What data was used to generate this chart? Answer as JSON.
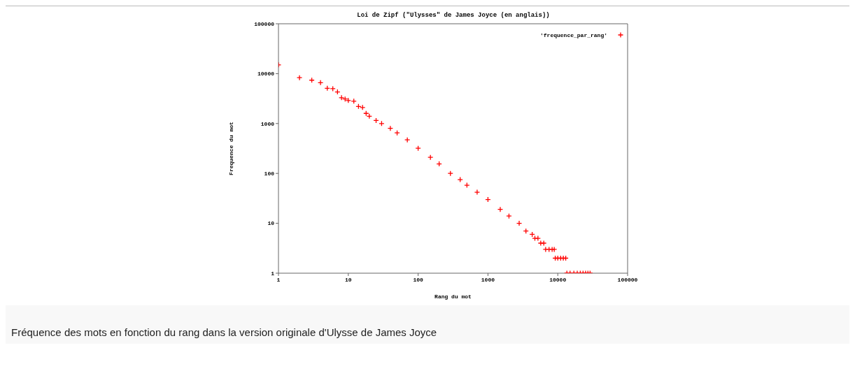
{
  "chart_data": {
    "type": "scatter",
    "title": "Loi de Zipf (\"Ulysses\" de James Joyce (en anglais))",
    "xlabel": "Rang du mot",
    "ylabel": "Frequence du mot",
    "log": "xy",
    "marker": "cross",
    "legend": "top right",
    "xlim": [
      1,
      100000
    ],
    "xticks": [
      1,
      10,
      100,
      1000,
      10000,
      100000
    ],
    "ylim": [
      1,
      100000
    ],
    "yticks": [
      1,
      10,
      100,
      1000,
      10000,
      100000
    ],
    "series": [
      {
        "name": "'frequence_par_rang'",
        "color": "#ff0000",
        "x": [
          1,
          2,
          3,
          4,
          5,
          6,
          7,
          8,
          9,
          10,
          12,
          14,
          16,
          18,
          20,
          25,
          30,
          40,
          50,
          70,
          100,
          150,
          200,
          290,
          400,
          500,
          700,
          1000,
          1500,
          2000,
          2800,
          3500,
          4300,
          4700,
          5200,
          5700,
          6300,
          6700,
          7500,
          8300,
          8900,
          9200,
          10000,
          11000,
          12000,
          13000,
          13500,
          15000,
          17000,
          19000,
          21000,
          23000,
          25000,
          27000,
          29000
        ],
        "values": [
          15000,
          8300,
          7400,
          6600,
          5100,
          5000,
          4300,
          3300,
          3100,
          2900,
          2800,
          2200,
          2100,
          1600,
          1400,
          1150,
          1000,
          800,
          650,
          470,
          320,
          210,
          155,
          100,
          75,
          58,
          42,
          30,
          19,
          14,
          10,
          7,
          6,
          5,
          5,
          4,
          4,
          3,
          3,
          3,
          3,
          2,
          2,
          2,
          2,
          2,
          1,
          1,
          1,
          1,
          1,
          1,
          1,
          1,
          1
        ]
      }
    ],
    "annotations": [
      "Fréquence des mots en fonction du rang dans la version originale d'Ulysse de James Joyce"
    ]
  }
}
